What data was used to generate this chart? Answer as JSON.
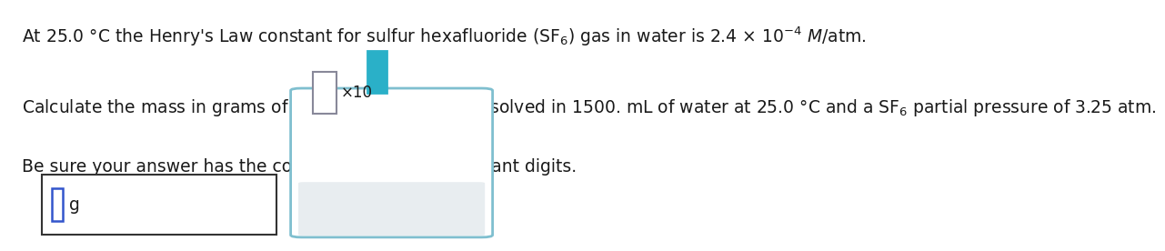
{
  "line1": "At 25.0 °C the Henry's Law constant for sulfur hexafluoride $\\left(\\mathrm{SF}_6\\right)$ gas in water is 2.4 × 10$^{-4}$ $M$/atm.",
  "line2": "Calculate the mass in grams of $\\mathrm{SF}_6$ gas that can be dissolved in 1500. mL of water at 25.0 °C and a $\\mathrm{SF}_6$ partial pressure of 3.25 atm.",
  "line3": "Be sure your answer has the correct number of significant digits.",
  "bg_color": "#ffffff",
  "text_color": "#1a1a1a",
  "font_size": 13.5,
  "box1_color": "#333333",
  "box2_border_color": "#7fbfcf",
  "blue_rect_color": "#3355cc",
  "teal_rect_color": "#2ab0c8",
  "gray_rect_color": "#888899",
  "x10_text": "×10",
  "g_text": "g"
}
